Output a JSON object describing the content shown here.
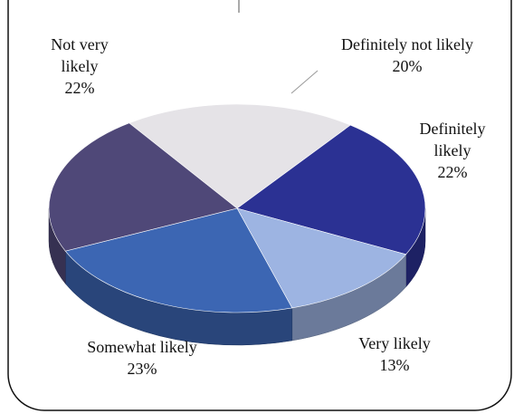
{
  "chart_data": {
    "type": "pie",
    "three_d": true,
    "slices": [
      {
        "name": "Definitely not likely",
        "value": 20,
        "label_lines": [
          "Definitely not likely",
          "20%"
        ],
        "color": "#E5E3E7"
      },
      {
        "name": "Definitely likely",
        "value": 22,
        "label_lines": [
          "Definitely",
          "likely",
          "22%"
        ],
        "color": "#2B3193"
      },
      {
        "name": "Very likely",
        "value": 13,
        "label_lines": [
          "Very likely",
          "13%"
        ],
        "color": "#9DB4E2"
      },
      {
        "name": "Somewhat likely",
        "value": 23,
        "label_lines": [
          "Somewhat likely",
          "23%"
        ],
        "color": "#3C66B3"
      },
      {
        "name": "Not very likely",
        "value": 22,
        "label_lines": [
          "Not very",
          "likely",
          "22%"
        ],
        "color": "#4F4878"
      }
    ]
  }
}
